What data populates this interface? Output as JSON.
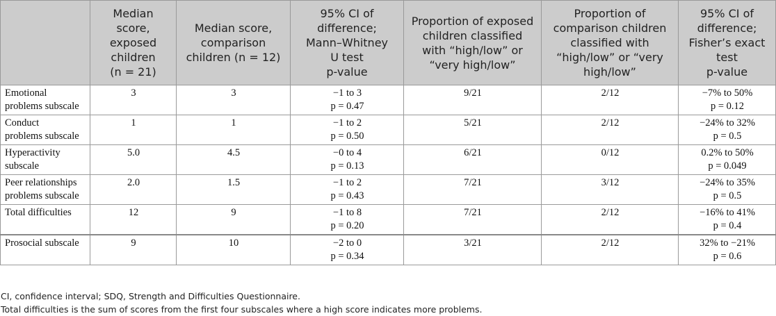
{
  "headers": [
    {
      "lines": [
        ""
      ]
    },
    {
      "lines": [
        "Median",
        "score,",
        "exposed",
        "children",
        "(n = 21)"
      ]
    },
    {
      "lines": [
        "Median score,",
        "comparison",
        "children (n = 12)"
      ]
    },
    {
      "lines": [
        "95% CI of",
        "difference;",
        "Mann–Whitney",
        "U test",
        "p-value"
      ]
    },
    {
      "lines": [
        "Proportion of exposed",
        "children classified",
        "with “high/low” or",
        "“very high/low”"
      ]
    },
    {
      "lines": [
        "Proportion of",
        "comparison children",
        "classified with",
        "“high/low” or “very",
        "high/low”"
      ]
    },
    {
      "lines": [
        "95% CI of",
        "difference;",
        "Fisher’s exact",
        "test",
        "p-value"
      ]
    }
  ],
  "rows": [
    {
      "label": [
        "Emotional",
        "problems subscale"
      ],
      "exposed": "3",
      "comparison": "3",
      "mw": [
        "−1 to 3",
        "p = 0.47"
      ],
      "prop_exposed": "9/21",
      "prop_comparison": "2/12",
      "fisher": [
        "−7% to 50%",
        "p = 0.12"
      ]
    },
    {
      "label": [
        "Conduct",
        "problems subscale"
      ],
      "exposed": "1",
      "comparison": "1",
      "mw": [
        "−1 to 2",
        "p = 0.50"
      ],
      "prop_exposed": "5/21",
      "prop_comparison": "2/12",
      "fisher": [
        "−24% to 32%",
        "p = 0.5"
      ]
    },
    {
      "label": [
        "Hyperactivity",
        "subscale"
      ],
      "exposed": "5.0",
      "comparison": "4.5",
      "mw": [
        "−0 to 4",
        "p = 0.13"
      ],
      "prop_exposed": "6/21",
      "prop_comparison": "0/12",
      "fisher": [
        "0.2% to 50%",
        "p = 0.049"
      ]
    },
    {
      "label": [
        "Peer relationships",
        "problems subscale"
      ],
      "exposed": "2.0",
      "comparison": "1.5",
      "mw": [
        "−1 to 2",
        "p = 0.43"
      ],
      "prop_exposed": "7/21",
      "prop_comparison": "3/12",
      "fisher": [
        "−24% to 35%",
        "p = 0.5"
      ]
    },
    {
      "label": [
        "Total difficulties"
      ],
      "exposed": "12",
      "comparison": "9",
      "mw": [
        "−1 to 8",
        "p = 0.20"
      ],
      "prop_exposed": "7/21",
      "prop_comparison": "2/12",
      "fisher": [
        "−16% to 41%",
        "p = 0.4"
      ]
    },
    {
      "label": [
        "Prosocial subscale"
      ],
      "exposed": "9",
      "comparison": "10",
      "mw": [
        "−2 to 0",
        "p = 0.34"
      ],
      "prop_exposed": "3/21",
      "prop_comparison": "2/12",
      "fisher": [
        "32% to −21%",
        "p = 0.6"
      ]
    }
  ],
  "notes": [
    "CI, confidence interval; SDQ, Strength and Difficulties Questionnaire.",
    "Total difficulties is the sum of scores from the first four subscales where a high score indicates more problems."
  ]
}
